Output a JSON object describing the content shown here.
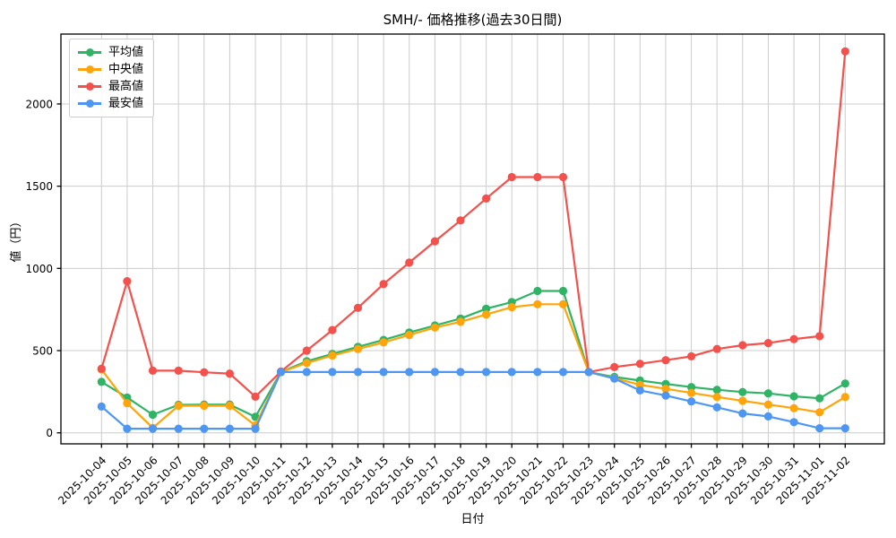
{
  "title": "SMH/- 価格推移(過去30日間)",
  "background_color": "#ffffff",
  "grid_color": "#cccccc",
  "axis_color": "#000000",
  "chart_data": {
    "type": "line",
    "title": "SMH/- 価格推移(過去30日間)",
    "xlabel": "日付",
    "ylabel": "値（円）",
    "grid": true,
    "legend_position": "upper-left",
    "ylim": [
      -67,
      2425
    ],
    "yticks": [
      0,
      500,
      1000,
      1500,
      2000
    ],
    "x": [
      "2025-10-04",
      "2025-10-05",
      "2025-10-06",
      "2025-10-07",
      "2025-10-08",
      "2025-10-09",
      "2025-10-10",
      "2025-10-11",
      "2025-10-12",
      "2025-10-13",
      "2025-10-14",
      "2025-10-15",
      "2025-10-16",
      "2025-10-17",
      "2025-10-18",
      "2025-10-19",
      "2025-10-20",
      "2025-10-21",
      "2025-10-22",
      "2025-10-23",
      "2025-10-24",
      "2025-10-25",
      "2025-10-26",
      "2025-10-27",
      "2025-10-28",
      "2025-10-29",
      "2025-10-30",
      "2025-10-31",
      "2025-11-01",
      "2025-11-02"
    ],
    "series": [
      {
        "id": "average",
        "name": "平均値",
        "color": "#2fb465",
        "values": [
          310,
          215,
          110,
          170,
          172,
          172,
          97,
          370,
          435,
          480,
          523,
          565,
          610,
          653,
          695,
          755,
          795,
          863,
          863,
          370,
          340,
          318,
          297,
          278,
          262,
          248,
          240,
          222,
          210,
          300
        ]
      },
      {
        "id": "median",
        "name": "中央値",
        "color": "#ffa40a",
        "values": [
          385,
          180,
          30,
          165,
          165,
          165,
          45,
          370,
          425,
          470,
          510,
          550,
          595,
          640,
          675,
          720,
          764,
          782,
          782,
          370,
          332,
          292,
          268,
          243,
          218,
          195,
          172,
          150,
          125,
          218
        ]
      },
      {
        "id": "highest",
        "name": "最高値",
        "color": "#f4514c",
        "values": [
          390,
          922,
          378,
          378,
          368,
          360,
          220,
          373,
          500,
          625,
          760,
          905,
          1035,
          1165,
          1292,
          1425,
          1555,
          1555,
          1555,
          370,
          400,
          420,
          442,
          465,
          510,
          533,
          546,
          570,
          588,
          2320
        ]
      },
      {
        "id": "lowest",
        "name": "最安値",
        "color": "#4d96f2",
        "values": [
          160,
          25,
          25,
          25,
          25,
          25,
          25,
          370,
          370,
          370,
          370,
          370,
          370,
          370,
          370,
          370,
          370,
          370,
          370,
          370,
          330,
          258,
          227,
          191,
          155,
          118,
          100,
          65,
          28,
          28
        ]
      }
    ]
  }
}
